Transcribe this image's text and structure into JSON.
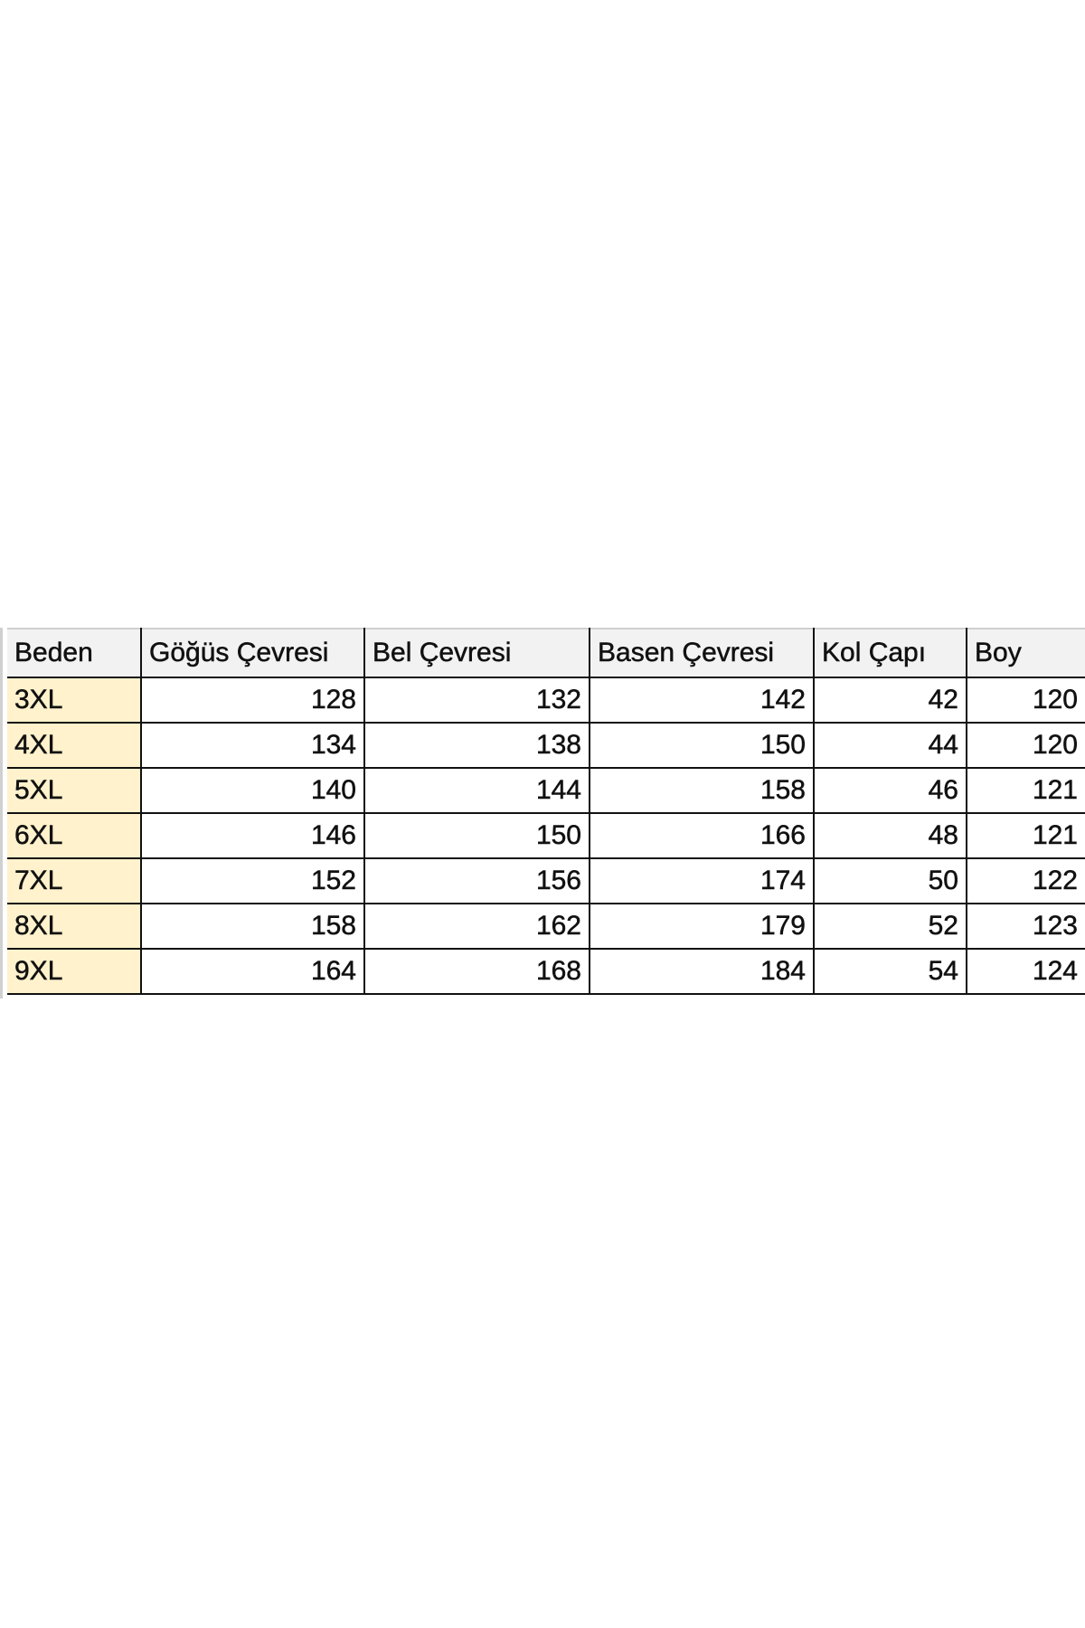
{
  "table": {
    "headers": [
      "Beden",
      "Göğüs Çevresi",
      "Bel Çevresi",
      "Basen Çevresi",
      "Kol Çapı",
      "Boy"
    ],
    "rows": [
      [
        "3XL",
        "128",
        "132",
        "142",
        "42",
        "120"
      ],
      [
        "4XL",
        "134",
        "138",
        "150",
        "44",
        "120"
      ],
      [
        "5XL",
        "140",
        "144",
        "158",
        "46",
        "121"
      ],
      [
        "6XL",
        "146",
        "150",
        "166",
        "48",
        "121"
      ],
      [
        "7XL",
        "152",
        "156",
        "174",
        "50",
        "122"
      ],
      [
        "8XL",
        "158",
        "162",
        "179",
        "52",
        "123"
      ],
      [
        "9XL",
        "164",
        "168",
        "184",
        "54",
        "124"
      ]
    ],
    "colors": {
      "size_cell_bg": "#fff2cc",
      "header_bg": "#f2f2f2",
      "border": "#111111"
    }
  }
}
